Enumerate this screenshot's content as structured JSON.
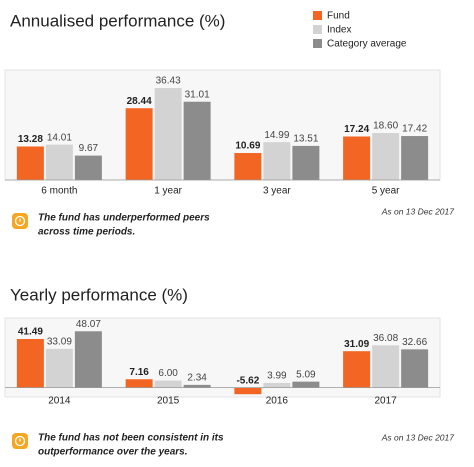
{
  "chart_data": [
    {
      "type": "bar",
      "title": "Annualised performance (%)",
      "categories": [
        "6 month",
        "1 year",
        "3 year",
        "5 year"
      ],
      "series": [
        {
          "name": "Fund",
          "color": "#f26522",
          "values": [
            13.28,
            28.44,
            10.69,
            17.24
          ],
          "value_labels": [
            "13.28",
            "28.44",
            "10.69",
            "17.24"
          ]
        },
        {
          "name": "Index",
          "color": "#d3d3d3",
          "values": [
            14.01,
            36.43,
            14.99,
            18.6
          ],
          "value_labels": [
            "14.01",
            "36.43",
            "14.99",
            "18.60"
          ]
        },
        {
          "name": "Category average",
          "color": "#8c8c8c",
          "values": [
            9.67,
            31.01,
            13.51,
            17.42
          ],
          "value_labels": [
            "9.67",
            "31.01",
            "13.51",
            "17.42"
          ]
        }
      ],
      "ylim": [
        0,
        42
      ],
      "note": [
        "The fund has underperformed peers",
        "across time periods."
      ],
      "date": "As on 13 Dec 2017"
    },
    {
      "type": "bar",
      "title": "Yearly performance (%)",
      "categories": [
        "2014",
        "2015",
        "2016",
        "2017"
      ],
      "series": [
        {
          "name": "Fund",
          "color": "#f26522",
          "values": [
            41.49,
            7.16,
            -5.62,
            31.09
          ],
          "value_labels": [
            "41.49",
            "7.16",
            "-5.62",
            "31.09"
          ]
        },
        {
          "name": "Index",
          "color": "#d3d3d3",
          "values": [
            33.09,
            6,
            3.99,
            36.08
          ],
          "value_labels": [
            "33.09",
            "6.00",
            "3.99",
            "36.08"
          ]
        },
        {
          "name": "Category average",
          "color": "#8c8c8c",
          "values": [
            48.07,
            2.34,
            5.09,
            32.66
          ],
          "value_labels": [
            "48.07",
            "2.34",
            "5.09",
            "32.66"
          ]
        }
      ],
      "ylim": [
        -8,
        56
      ],
      "note": [
        "The fund has not been consistent in its",
        "outperformance over the years."
      ],
      "date": "As on 13 Dec 2017"
    }
  ]
}
